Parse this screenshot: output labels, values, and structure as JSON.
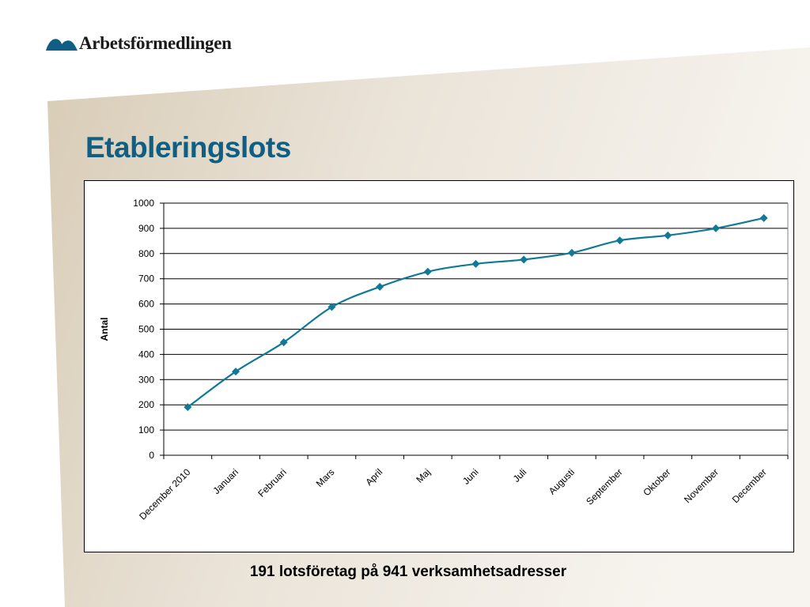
{
  "brand": {
    "name": "Arbetsförmedlingen",
    "logo_icon": "arbetsformedlingen-logo-mark",
    "color": "#0f5e84"
  },
  "slide": {
    "title": "Etableringslots",
    "caption": "191 lotsföretag på 941 verksamhetsadresser",
    "background_accent": "#d9cdb8"
  },
  "chart_data": {
    "type": "line",
    "title": "",
    "xlabel": "",
    "ylabel": "Antal",
    "ylim": [
      0,
      1000
    ],
    "yticks": [
      0,
      100,
      200,
      300,
      400,
      500,
      600,
      700,
      800,
      900,
      1000
    ],
    "grid": true,
    "legend": "none",
    "categories": [
      "December 2010",
      "Januari",
      "Februari",
      "Mars",
      "April",
      "Maj",
      "Juni",
      "Juli",
      "Augusti",
      "September",
      "Oktober",
      "November",
      "December"
    ],
    "series": [
      {
        "color": "#107a96",
        "values": [
          191,
          332,
          448,
          588,
          668,
          728,
          759,
          776,
          803,
          852,
          872,
          900,
          941
        ]
      }
    ]
  }
}
